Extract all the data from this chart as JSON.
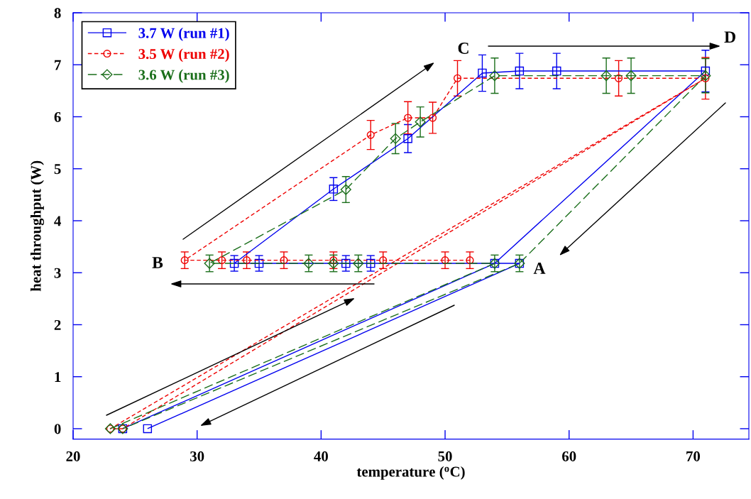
{
  "chart_data": {
    "type": "line",
    "xlabel": "temperature ($^{o}$C)",
    "ylabel": "heat throughput (W)",
    "xlim": [
      20,
      74.5
    ],
    "ylim": [
      -0.2,
      8
    ],
    "xticks": [
      20,
      30,
      40,
      50,
      60,
      70
    ],
    "yticks": [
      0,
      1,
      2,
      3,
      4,
      5,
      6,
      7,
      8
    ],
    "grid": false,
    "legend": "top left",
    "series": [
      {
        "name": "3.7 W (run #1)",
        "color": "#0000ee",
        "marker": "square",
        "line_style": "solid",
        "x": [
          26,
          56,
          54,
          44,
          42,
          35,
          33,
          41,
          47,
          53,
          56,
          59,
          71,
          54,
          24
        ],
        "values": [
          0,
          3.18,
          3.18,
          3.18,
          3.18,
          3.18,
          3.18,
          4.61,
          5.58,
          6.84,
          6.88,
          6.88,
          6.88,
          3.18,
          0
        ],
        "errors": [
          null,
          null,
          null,
          0.15,
          0.15,
          0.15,
          0.15,
          0.22,
          0.27,
          0.35,
          0.34,
          0.34,
          0.4,
          null,
          null
        ]
      },
      {
        "name": "3.5 W (run #2)",
        "color": "#ee0000",
        "marker": "circle",
        "line_style": "dashed",
        "x": [
          52,
          50,
          45,
          41,
          37,
          34,
          32,
          29,
          44,
          47,
          49,
          51,
          64,
          71,
          23,
          24,
          71
        ],
        "values": [
          3.24,
          3.24,
          3.24,
          3.24,
          3.24,
          3.24,
          3.24,
          3.24,
          5.65,
          5.98,
          5.98,
          6.74,
          6.74,
          6.74,
          0,
          0,
          6.74
        ],
        "errors": [
          0.16,
          0.16,
          0.16,
          0.16,
          0.16,
          0.16,
          0.16,
          0.16,
          0.28,
          0.31,
          0.3,
          0.34,
          0.34,
          0.4,
          null,
          null,
          null
        ]
      },
      {
        "name": "3.6 W (run #3)",
        "color": "#1a6e1a",
        "marker": "diamond",
        "line_style": "dashed",
        "x": [
          23,
          54,
          43,
          41,
          39,
          31,
          42,
          46,
          48,
          54,
          63,
          65,
          71,
          56,
          24
        ],
        "values": [
          0,
          3.18,
          3.18,
          3.18,
          3.18,
          3.18,
          4.6,
          5.58,
          5.9,
          6.79,
          6.79,
          6.79,
          6.79,
          3.18,
          0
        ],
        "errors": [
          null,
          0.16,
          0.16,
          0.16,
          0.16,
          0.16,
          0.25,
          0.29,
          0.29,
          0.34,
          0.34,
          0.34,
          0.33,
          0.16,
          null
        ]
      }
    ],
    "annotations": [
      "A",
      "B",
      "C",
      {
        "text": "D",
        "x": 71,
        "y": 6.88
      }
    ]
  }
}
